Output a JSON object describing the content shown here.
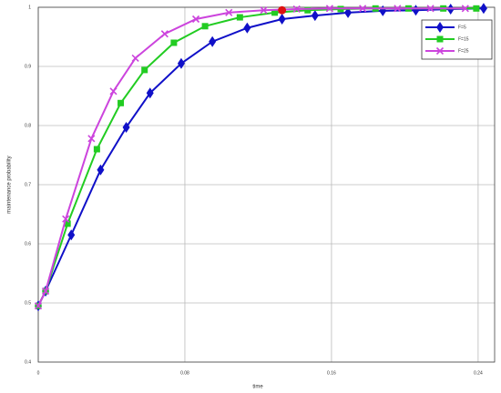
{
  "chart_data": {
    "type": "line",
    "x_label": "time",
    "y_label": "maintenance probability",
    "xlim": [
      0,
      0.249
    ],
    "ylim": [
      0.4,
      1
    ],
    "xticks": [
      0,
      0.08,
      0.16,
      0.24
    ],
    "yticks": [
      0.4,
      0.5,
      0.6,
      0.7,
      0.8,
      0.9,
      1
    ],
    "grid": true,
    "legend": "upper right",
    "series": [
      {
        "name": "F=5",
        "color": "#1010c8",
        "marker": "diamond",
        "x": [
          0,
          0.004,
          0.018,
          0.034,
          0.048,
          0.061,
          0.078,
          0.095,
          0.114,
          0.133,
          0.151,
          0.169,
          0.188,
          0.206,
          0.225,
          0.243
        ],
        "values": [
          0.495,
          0.52,
          0.615,
          0.725,
          0.797,
          0.855,
          0.905,
          0.942,
          0.965,
          0.98,
          0.986,
          0.991,
          0.994,
          0.995,
          0.997,
          0.998
        ]
      },
      {
        "name": "F=15",
        "color": "#22cc22",
        "marker": "square",
        "x": [
          0,
          0.004,
          0.016,
          0.032,
          0.045,
          0.058,
          0.074,
          0.091,
          0.11,
          0.129,
          0.147,
          0.165,
          0.184,
          0.202,
          0.221,
          0.239
        ],
        "values": [
          0.495,
          0.52,
          0.634,
          0.76,
          0.838,
          0.894,
          0.94,
          0.968,
          0.983,
          0.991,
          0.995,
          0.997,
          0.998,
          0.998,
          0.998,
          0.998
        ]
      },
      {
        "name": "F=25",
        "color": "#cc44dd",
        "marker": "x",
        "x": [
          0,
          0.004,
          0.015,
          0.029,
          0.041,
          0.053,
          0.069,
          0.086,
          0.104,
          0.123,
          0.141,
          0.159,
          0.177,
          0.196,
          0.214,
          0.233
        ],
        "values": [
          0.495,
          0.52,
          0.642,
          0.778,
          0.858,
          0.914,
          0.955,
          0.98,
          0.991,
          0.995,
          0.997,
          0.998,
          0.998,
          0.998,
          0.998,
          0.998
        ]
      }
    ],
    "highlight_point": {
      "x": 0.133,
      "y": 0.995,
      "color": "#dd1111"
    }
  }
}
